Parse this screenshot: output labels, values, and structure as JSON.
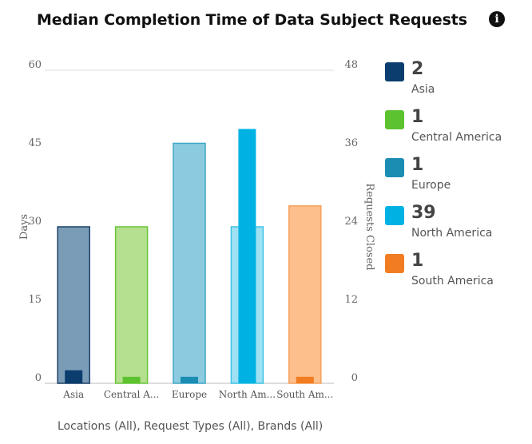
{
  "header": {
    "title": "Median Completion Time of Data Subject Requests",
    "info_icon": "info-icon"
  },
  "footer": {
    "filters": "Locations (All), Request Types (All), Brands (All)"
  },
  "chart_data": {
    "type": "bar",
    "title": "Median Completion Time of Data Subject Requests",
    "categories": [
      "Asia",
      "Central A...",
      "Europe",
      "North Am...",
      "South Am..."
    ],
    "series": [
      {
        "name": "Days",
        "axis": "left",
        "values": [
          30,
          30,
          46,
          30,
          34
        ],
        "colors": [
          "#7b9cb6",
          "#b4e08f",
          "#8ccbdf",
          "#9fe0f2",
          "#fdbf8c"
        ],
        "border_colors": [
          "#1b3f66",
          "#68c43a",
          "#3ea6c7",
          "#3cc3e6",
          "#f5a05a"
        ]
      },
      {
        "name": "Requests Closed",
        "axis": "right",
        "values": [
          2,
          1,
          1,
          39,
          1
        ],
        "colors": [
          "#0b3d6e",
          "#5dc22f",
          "#1b8db3",
          "#00b2e3",
          "#f27c22"
        ]
      }
    ],
    "ylabel": "Days",
    "y2label": "Requests Closed",
    "ylim": [
      0,
      60
    ],
    "y2lim": [
      0,
      48
    ],
    "yticks": [
      "0",
      "15",
      "30",
      "45",
      "60"
    ],
    "y2ticks": [
      "0",
      "12",
      "24",
      "36",
      "48"
    ],
    "grid": true,
    "legend_position": "right"
  },
  "legend": {
    "items": [
      {
        "count": "2",
        "label": "Asia",
        "color": "#0b3d6e"
      },
      {
        "count": "1",
        "label": "Central America",
        "color": "#5dc22f"
      },
      {
        "count": "1",
        "label": "Europe",
        "color": "#1b8db3"
      },
      {
        "count": "39",
        "label": "North America",
        "color": "#00b2e3"
      },
      {
        "count": "1",
        "label": "South America",
        "color": "#f27c22"
      }
    ]
  }
}
